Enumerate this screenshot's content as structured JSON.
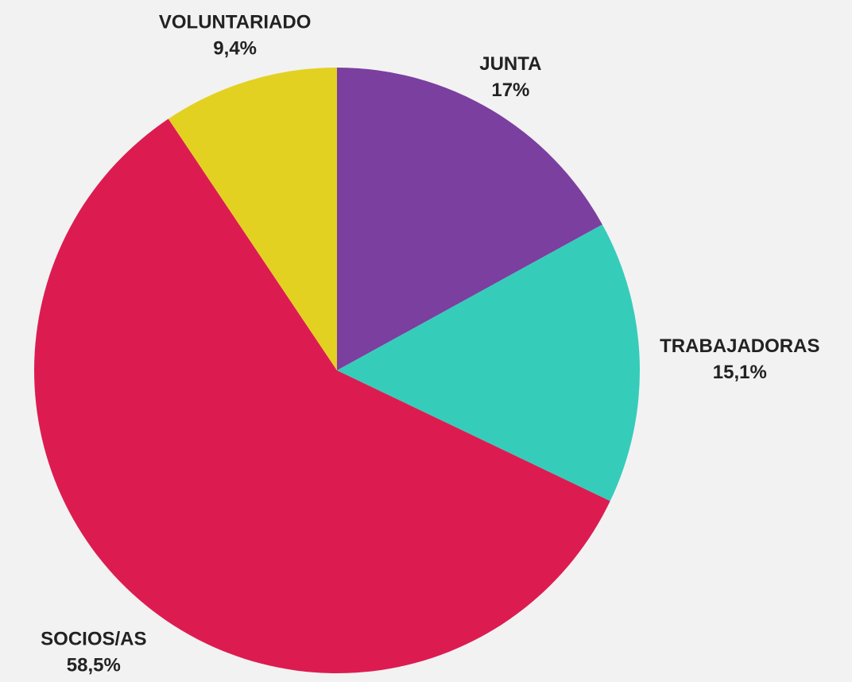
{
  "chart_data": {
    "type": "pie",
    "categories": [
      "JUNTA",
      "TRABAJADORAS",
      "SOCIOS/AS",
      "VOLUNTARIADO"
    ],
    "values": [
      17,
      15.1,
      58.5,
      9.4
    ],
    "value_labels": [
      "17%",
      "15,1%",
      "58,5%",
      "9,4%"
    ],
    "colors": [
      "#7b3fa0",
      "#36ccba",
      "#dc1c50",
      "#e3d122"
    ]
  }
}
